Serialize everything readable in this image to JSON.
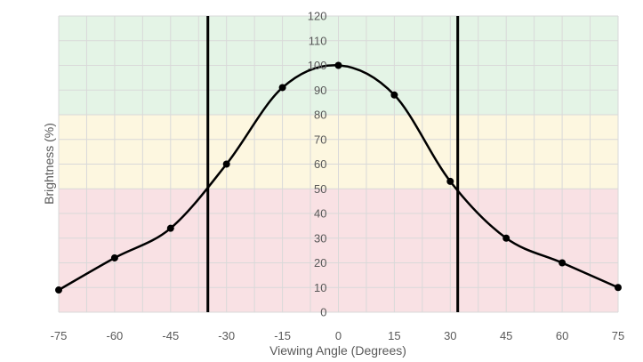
{
  "chart_data": {
    "type": "line",
    "title": "",
    "xlabel": "Viewing Angle (Degrees)",
    "ylabel": "Brightness (%)",
    "xlim": [
      -75,
      75
    ],
    "ylim": [
      0,
      120
    ],
    "x_ticks": [
      -75,
      -60,
      -45,
      -30,
      -15,
      0,
      15,
      30,
      45,
      60,
      75
    ],
    "y_ticks": [
      0,
      10,
      20,
      30,
      40,
      50,
      60,
      70,
      80,
      90,
      100,
      110,
      120
    ],
    "grid": true,
    "series": [
      {
        "x": [
          -75,
          -60,
          -45,
          -30,
          -15,
          0,
          15,
          30,
          45,
          60,
          75
        ],
        "y": [
          9,
          22,
          34,
          60,
          91,
          100,
          88,
          53,
          30,
          20,
          10
        ],
        "color": "#000000"
      }
    ],
    "vertical_lines": [
      -35,
      32
    ],
    "bands": [
      {
        "from": 80,
        "to": 120,
        "color": "#e4f4e6"
      },
      {
        "from": 50,
        "to": 80,
        "color": "#fdf7e0"
      },
      {
        "from": 0,
        "to": 50,
        "color": "#f9e1e4"
      }
    ]
  }
}
